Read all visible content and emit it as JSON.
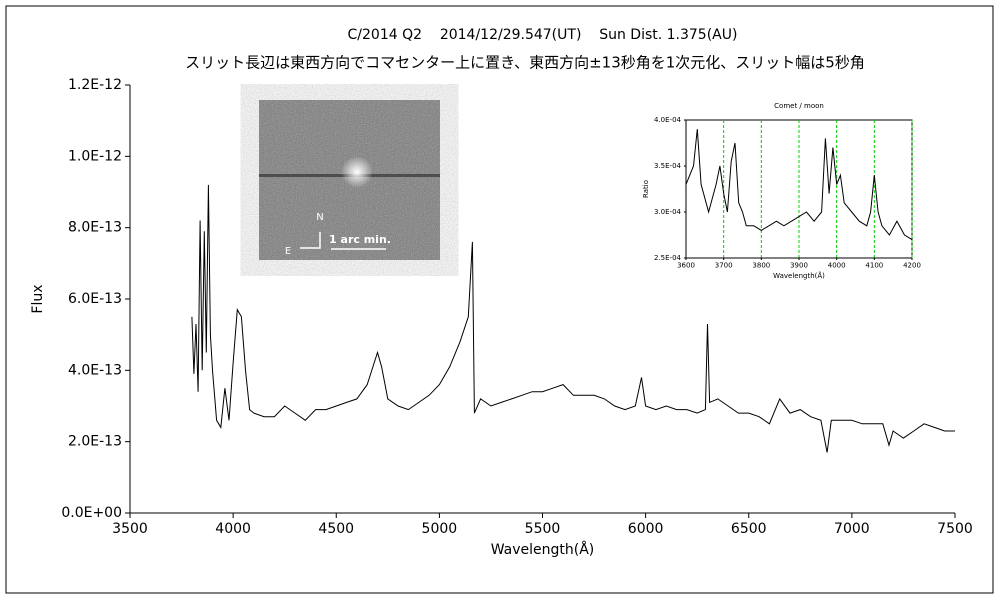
{
  "chart_data": [
    {
      "type": "line",
      "title": "C/2014 Q2    2014/12/29.547(UT)    Sun Dist. 1.375(AU)",
      "subtitle": "スリット長辺は東西方向でコマセンター上に置き、東西方向±13秒角を1次元化、スリット幅は5秒角",
      "xlabel": "Wavelength(Å)",
      "ylabel": "Flux",
      "color": "#000000",
      "xlim": [
        3500,
        7500
      ],
      "xticks": [
        3500,
        4000,
        4500,
        5000,
        5500,
        6000,
        6500,
        7000,
        7500
      ],
      "ylim": [
        0,
        1.2e-12
      ],
      "yticks": [
        {
          "value": 0,
          "label": "0.0E+00"
        },
        {
          "value": 2e-13,
          "label": "2.0E-13"
        },
        {
          "value": 4e-13,
          "label": "4.0E-13"
        },
        {
          "value": 6e-13,
          "label": "6.0E-13"
        },
        {
          "value": 8e-13,
          "label": "8.0E-13"
        },
        {
          "value": 1e-12,
          "label": "1.0E-12"
        },
        {
          "value": 1.2e-12,
          "label": "1.2E-12"
        }
      ],
      "grid": false,
      "x": [
        3800,
        3810,
        3820,
        3830,
        3840,
        3850,
        3860,
        3870,
        3880,
        3890,
        3900,
        3920,
        3940,
        3960,
        3980,
        4000,
        4020,
        4040,
        4060,
        4080,
        4100,
        4150,
        4200,
        4250,
        4300,
        4350,
        4400,
        4450,
        4500,
        4550,
        4600,
        4650,
        4700,
        4720,
        4750,
        4800,
        4850,
        4900,
        4950,
        5000,
        5050,
        5100,
        5140,
        5160,
        5170,
        5200,
        5250,
        5300,
        5350,
        5400,
        5450,
        5500,
        5550,
        5600,
        5650,
        5700,
        5750,
        5800,
        5850,
        5900,
        5950,
        5980,
        6000,
        6050,
        6100,
        6150,
        6200,
        6250,
        6290,
        6300,
        6310,
        6350,
        6400,
        6450,
        6500,
        6550,
        6600,
        6650,
        6700,
        6750,
        6800,
        6850,
        6880,
        6900,
        6950,
        7000,
        7050,
        7100,
        7150,
        7180,
        7200,
        7250,
        7300,
        7350,
        7400,
        7450,
        7500
      ],
      "values": [
        5.5e-13,
        3.9e-13,
        5.3e-13,
        3.4e-13,
        8.2e-13,
        4e-13,
        7.9e-13,
        4.5e-13,
        9.2e-13,
        5e-13,
        4e-13,
        2.6e-13,
        2.4e-13,
        3.5e-13,
        2.6e-13,
        4.2e-13,
        5.7e-13,
        5.5e-13,
        4e-13,
        2.9e-13,
        2.8e-13,
        2.7e-13,
        2.7e-13,
        3e-13,
        2.8e-13,
        2.6e-13,
        2.9e-13,
        2.9e-13,
        3e-13,
        3.1e-13,
        3.2e-13,
        3.6e-13,
        4.5e-13,
        4.1e-13,
        3.2e-13,
        3e-13,
        2.9e-13,
        3.1e-13,
        3.3e-13,
        3.6e-13,
        4.1e-13,
        4.8e-13,
        5.5e-13,
        7.6e-13,
        2.8e-13,
        3.2e-13,
        3e-13,
        3.1e-13,
        3.2e-13,
        3.3e-13,
        3.4e-13,
        3.4e-13,
        3.5e-13,
        3.6e-13,
        3.3e-13,
        3.3e-13,
        3.3e-13,
        3.2e-13,
        3e-13,
        2.9e-13,
        3e-13,
        3.8e-13,
        3e-13,
        2.9e-13,
        3e-13,
        2.9e-13,
        2.9e-13,
        2.8e-13,
        2.9e-13,
        5.3e-13,
        3.1e-13,
        3.2e-13,
        3e-13,
        2.8e-13,
        2.8e-13,
        2.7e-13,
        2.5e-13,
        3.2e-13,
        2.8e-13,
        2.9e-13,
        2.7e-13,
        2.6e-13,
        1.7e-13,
        2.6e-13,
        2.6e-13,
        2.6e-13,
        2.5e-13,
        2.5e-13,
        2.5e-13,
        1.9e-13,
        2.3e-13,
        2.1e-13,
        2.3e-13,
        2.5e-13,
        2.4e-13,
        2.3e-13,
        2.3e-13
      ]
    },
    {
      "type": "line",
      "title": "Comet / moon",
      "xlabel": "Wavelength(Å)",
      "ylabel": "Ratio",
      "color": "#000000",
      "xlim": [
        3600,
        4200
      ],
      "xticks": [
        3600,
        3700,
        3800,
        3900,
        4000,
        4100,
        4200
      ],
      "ylim": [
        0.00025,
        0.0004
      ],
      "yticks": [
        {
          "value": 0.00025,
          "label": "2.5E-04"
        },
        {
          "value": 0.0003,
          "label": "3.0E-04"
        },
        {
          "value": 0.00035,
          "label": "3.5E-04"
        },
        {
          "value": 0.0004,
          "label": "4.0E-04"
        }
      ],
      "grid": "x",
      "grid_color": "#00cc00",
      "x": [
        3600,
        3620,
        3630,
        3640,
        3660,
        3680,
        3690,
        3700,
        3710,
        3720,
        3730,
        3740,
        3750,
        3760,
        3780,
        3800,
        3820,
        3840,
        3860,
        3880,
        3900,
        3920,
        3940,
        3960,
        3970,
        3980,
        3990,
        4000,
        4010,
        4020,
        4040,
        4060,
        4080,
        4090,
        4100,
        4110,
        4120,
        4140,
        4160,
        4180,
        4200
      ],
      "values": [
        0.00033,
        0.00035,
        0.00039,
        0.00033,
        0.0003,
        0.00033,
        0.00035,
        0.00032,
        0.0003,
        0.000355,
        0.000375,
        0.00031,
        0.0003,
        0.000285,
        0.000285,
        0.00028,
        0.000285,
        0.00029,
        0.000285,
        0.00029,
        0.000295,
        0.0003,
        0.00029,
        0.0003,
        0.00038,
        0.00032,
        0.00037,
        0.00033,
        0.00034,
        0.00031,
        0.0003,
        0.00029,
        0.000285,
        0.0003,
        0.00034,
        0.0003,
        0.000285,
        0.000275,
        0.00029,
        0.000275,
        0.00027
      ]
    }
  ],
  "inset_image": {
    "labels": [
      "N",
      "E",
      "1 arc min."
    ]
  }
}
